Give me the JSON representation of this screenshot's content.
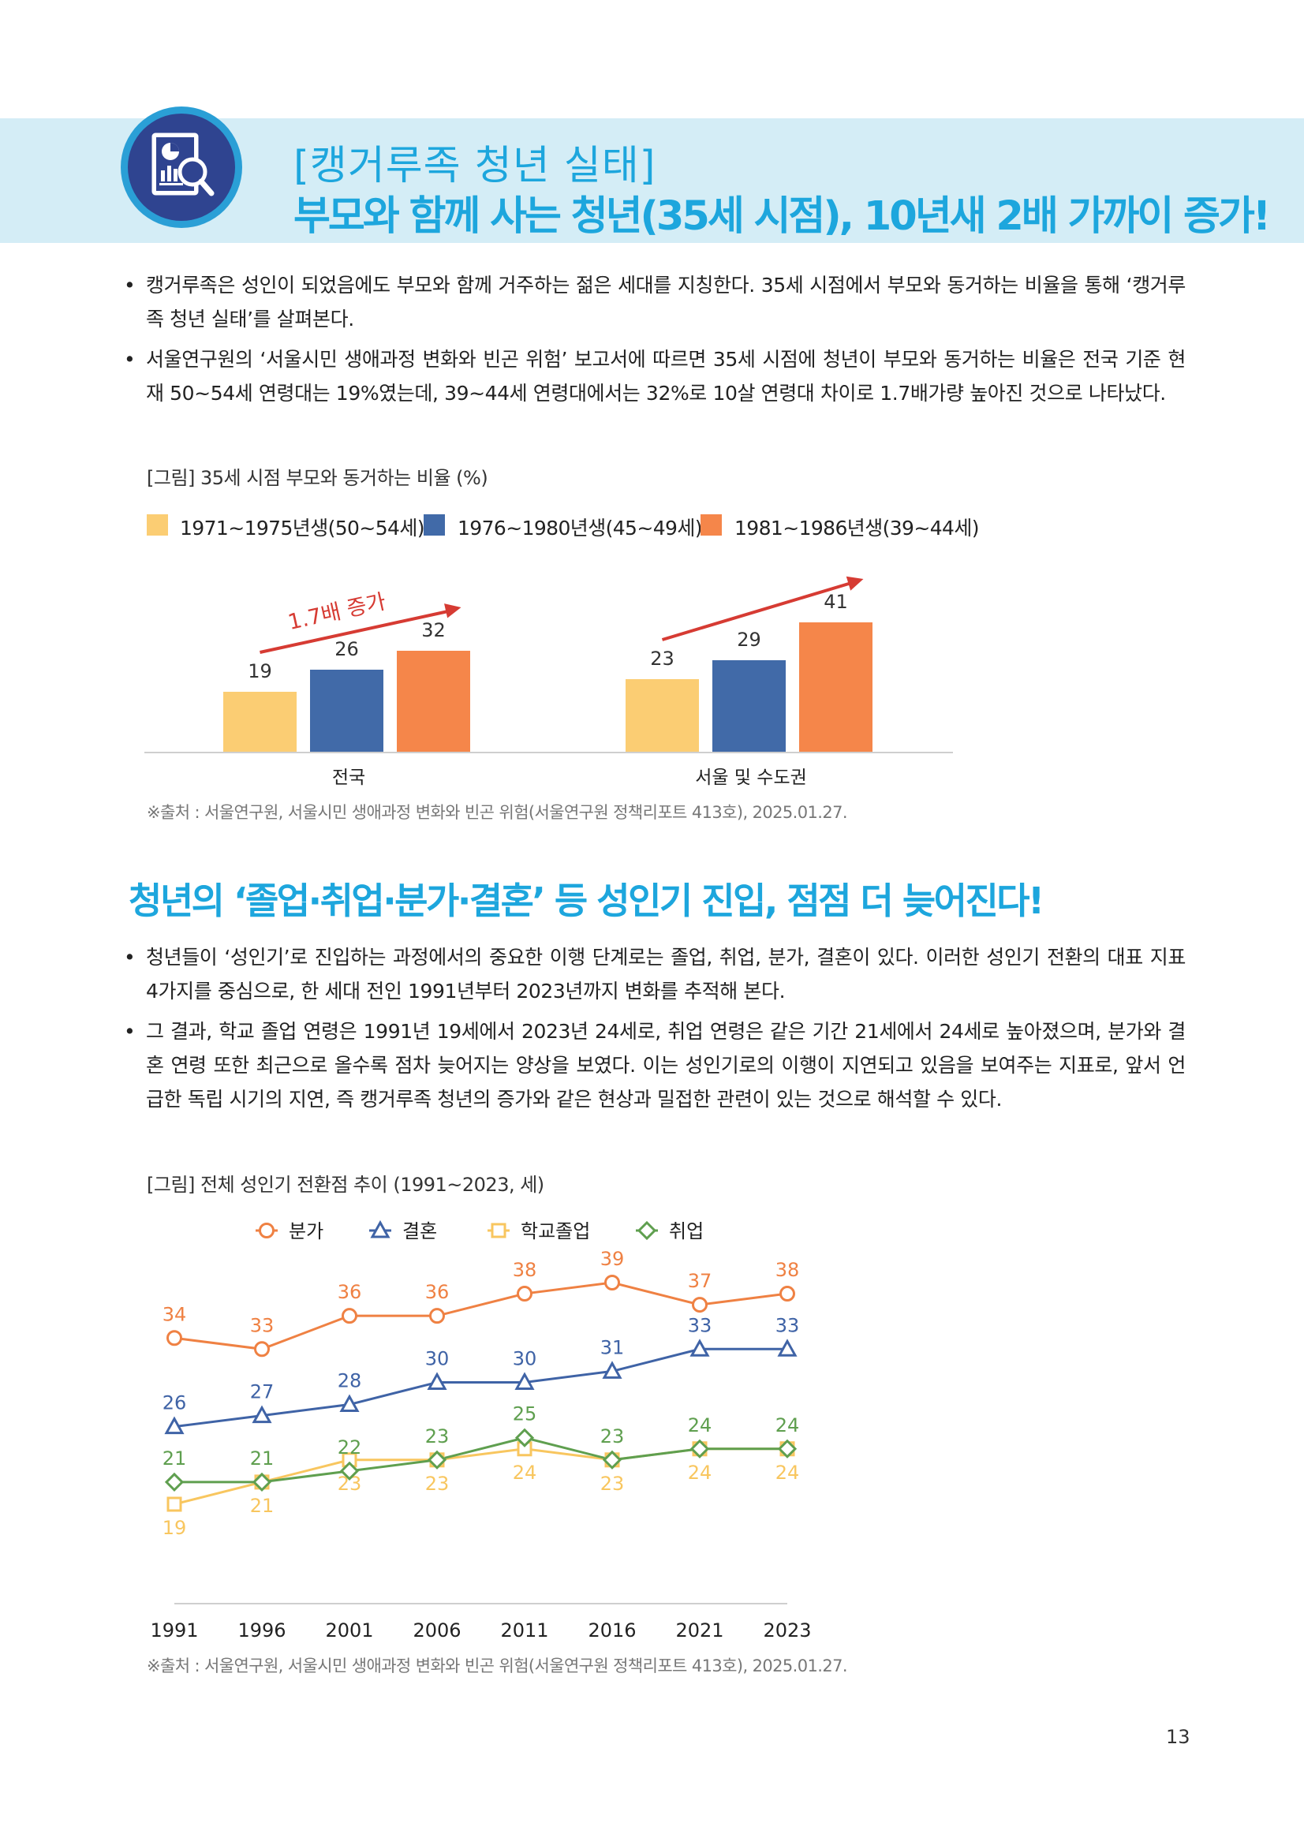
{
  "header": {
    "category": "[캥거루족 청년 실태]",
    "title": "부모와 함께 사는 청년(35세 시점), 10년새 2배 가까이 증가!",
    "icon": "report-magnifier-icon"
  },
  "section1": {
    "bullets": [
      "캥거루족은 성인이 되었음에도 부모와 함께 거주하는 젊은 세대를 지칭한다. 35세 시점에서 부모와 동거하는 비율을 통해 ‘캥거루족 청년 실태’를 살펴본다.",
      "서울연구원의 ‘서울시민 생애과정 변화와 빈곤 위험’ 보고서에 따르면 35세 시점에 청년이 부모와 동거하는 비율은 전국 기준 현재 50~54세 연령대는 19%였는데, 39~44세 연령대에서는 32%로 10살 연령대 차이로 1.7배가량 높아진 것으로 나타났다."
    ],
    "figure_caption": "[그림] 35세 시점 부모와 동거하는 비율 (%)",
    "source": "※출처 : 서울연구원, 서울시민 생애과정 변화와 빈곤 위험(서울연구원 정책리포트 413호), 2025.01.27."
  },
  "section2": {
    "title": "청년의 ‘졸업·취업·분가·결혼’ 등 성인기 진입, 점점 더 늦어진다!",
    "bullets": [
      "청년들이 ‘성인기’로 진입하는 과정에서의 중요한 이행 단계로는 졸업, 취업, 분가, 결혼이 있다. 이러한 성인기 전환의 대표 지표 4가지를 중심으로, 한 세대 전인 1991년부터 2023년까지 변화를 추적해 본다.",
      "그 결과, 학교 졸업 연령은 1991년 19세에서 2023년 24세로, 취업 연령은 같은 기간 21세에서 24세로 높아졌으며, 분가와 결혼 연령 또한 최근으로 올수록 점차 늦어지는 양상을 보였다. 이는 성인기로의 이행이 지연되고 있음을 보여주는 지표로, 앞서 언급한 독립 시기의 지연, 즉 캥거루족 청년의 증가와 같은 현상과 밀접한 관련이 있는 것으로 해석할 수 있다."
    ],
    "figure_caption": "[그림] 전체 성인기 전환점 추이 (1991~2023, 세)",
    "source": "※출처 : 서울연구원, 서울시민 생애과정 변화와 빈곤 위험(서울연구원 정책리포트 413호), 2025.01.27."
  },
  "page_number": "13",
  "chart_data": [
    {
      "type": "bar",
      "categories": [
        "전국",
        "서울 및 수도권"
      ],
      "series": [
        {
          "name": "1971~1975년생(50~54세)",
          "color": "#fbcd73",
          "values": [
            19,
            23
          ]
        },
        {
          "name": "1976~1980년생(45~49세)",
          "color": "#416aa8",
          "values": [
            26,
            29
          ]
        },
        {
          "name": "1981~1986년생(39~44세)",
          "color": "#f5864a",
          "values": [
            32,
            41
          ]
        }
      ],
      "ylim": [
        0,
        50
      ],
      "legend": "top",
      "annotation": {
        "text": "1.7배 증가",
        "color": "#d63b33"
      },
      "grid": false
    },
    {
      "type": "line",
      "x": [
        "1991",
        "1996",
        "2001",
        "2006",
        "2011",
        "2016",
        "2021",
        "2023"
      ],
      "series": [
        {
          "name": "분가",
          "color": "#ef8143",
          "marker": "circle",
          "values": [
            34,
            33,
            36,
            36,
            38,
            39,
            37,
            38
          ]
        },
        {
          "name": "결혼",
          "color": "#3f63a6",
          "marker": "triangle",
          "values": [
            26,
            27,
            28,
            30,
            30,
            31,
            33,
            33
          ]
        },
        {
          "name": "학교졸업",
          "color": "#f8c65f",
          "marker": "square",
          "values": [
            19,
            21,
            23,
            23,
            24,
            23,
            24,
            24
          ]
        },
        {
          "name": "취업",
          "color": "#5f9f4f",
          "marker": "diamond",
          "values": [
            21,
            21,
            22,
            23,
            25,
            23,
            24,
            24
          ]
        }
      ],
      "ylim": [
        17,
        41
      ],
      "legend": "top",
      "grid": false
    }
  ]
}
